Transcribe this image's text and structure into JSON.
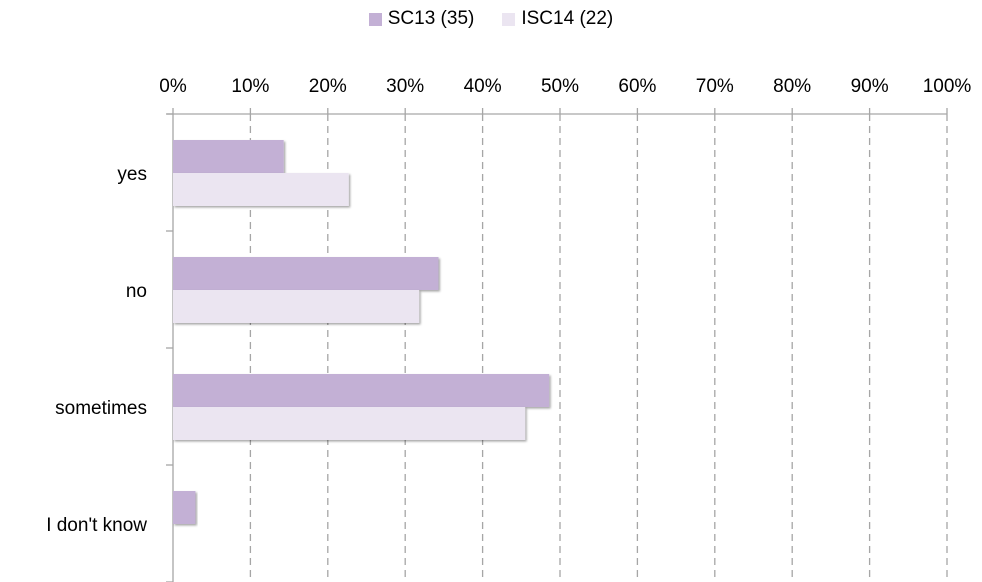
{
  "chart_data": {
    "type": "bar",
    "orientation": "horizontal",
    "categories": [
      "yes",
      "no",
      "sometimes",
      "I don't know"
    ],
    "series": [
      {
        "name": "SC13 (35)",
        "color": "#c3b0d5",
        "values": [
          14.3,
          34.3,
          48.6,
          2.9
        ]
      },
      {
        "name": "ISC14 (22)",
        "color": "#ebe5f1",
        "values": [
          22.7,
          31.8,
          45.5,
          0
        ]
      }
    ],
    "xlim": [
      0,
      100
    ],
    "xticks": [
      "0%",
      "10%",
      "20%",
      "30%",
      "40%",
      "50%",
      "60%",
      "70%",
      "80%",
      "90%",
      "100%"
    ],
    "grid": true,
    "legend": "top-center"
  }
}
